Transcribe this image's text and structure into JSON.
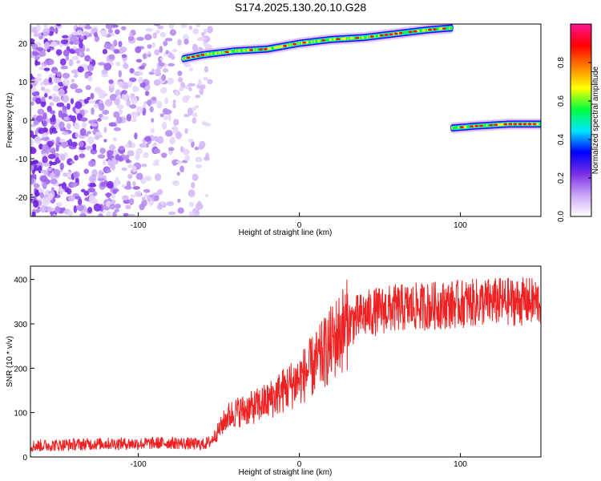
{
  "title": "S174.2025.130.20.10.G28",
  "chart_data": [
    {
      "type": "heatmap",
      "xlabel": "Height of straight line (km)",
      "ylabel": "Frequency (Hz)",
      "xlim": [
        -167,
        150
      ],
      "ylim": [
        -25,
        25
      ],
      "xticks": [
        -100,
        0,
        100
      ],
      "yticks": [
        20,
        10,
        0,
        -10,
        -20
      ],
      "colorbar": {
        "label": "Normalized spectral amplitude",
        "range": [
          0,
          1
        ],
        "ticks": [
          "0.0",
          "0.2",
          "0.4",
          "0.6",
          "0.8"
        ],
        "colors": [
          "#ffffff",
          "#c9a6f5",
          "#7a2ee6",
          "#0000ff",
          "#00e5ff",
          "#00ff40",
          "#ffff00",
          "#ff8000",
          "#ff0000",
          "#ff1493"
        ]
      },
      "ridges": [
        {
          "x": [
            -72,
            -60,
            -40,
            -20,
            0,
            20,
            40,
            60,
            80,
            95
          ],
          "freq": [
            16,
            17,
            18,
            18.5,
            20,
            21,
            21.5,
            22.5,
            23.5,
            24
          ]
        },
        {
          "x": [
            95,
            110,
            130,
            150
          ],
          "freq": [
            -2,
            -1.5,
            -1,
            -1
          ]
        }
      ],
      "noise_region": {
        "x": [
          -167,
          -55
        ],
        "freq": [
          -25,
          25
        ]
      }
    },
    {
      "type": "line",
      "xlabel": "Height of straight line (km)",
      "ylabel": "SNR (10 * v/v)",
      "xlim": [
        -167,
        150
      ],
      "ylim": [
        0,
        430
      ],
      "xticks": [
        -100,
        0,
        100
      ],
      "yticks": [
        0,
        100,
        200,
        300,
        400
      ],
      "color": "#ee2222",
      "series": [
        {
          "x": [
            -167,
            -140,
            -120,
            -100,
            -80,
            -60,
            -55,
            -50,
            -45,
            -40,
            -30,
            -20,
            -10,
            0,
            10,
            20,
            25,
            30,
            40,
            50,
            60,
            80,
            100,
            120,
            150
          ],
          "y": [
            25,
            28,
            30,
            30,
            32,
            28,
            35,
            60,
            90,
            100,
            110,
            125,
            150,
            175,
            210,
            255,
            280,
            300,
            320,
            330,
            335,
            340,
            345,
            350,
            350
          ]
        }
      ]
    }
  ]
}
